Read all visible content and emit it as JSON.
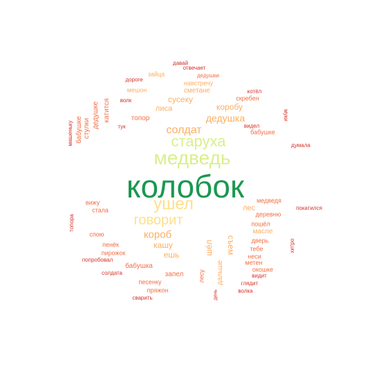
{
  "colors": {
    "green": "#1a9850",
    "lightgreen": "#d9ef8b",
    "yellow": "#fee08b",
    "orange": "#fdae61",
    "darkorange": "#f46d43",
    "red": "#d73027"
  },
  "words": [
    {
      "text": "колобок",
      "color": "green"
    },
    {
      "text": "медведь",
      "color": "lightgreen"
    },
    {
      "text": "старуха",
      "color": "lightgreen"
    },
    {
      "text": "ушел",
      "color": "yellow"
    },
    {
      "text": "говорит",
      "color": "yellow"
    },
    {
      "text": "солдат",
      "color": "orange"
    },
    {
      "text": "короб",
      "color": "orange"
    },
    {
      "text": "дедушка",
      "color": "orange"
    },
    {
      "text": "коробу",
      "color": "orange"
    },
    {
      "text": "сусеку",
      "color": "orange"
    },
    {
      "text": "лиса",
      "color": "orange"
    },
    {
      "text": "кашу",
      "color": "orange"
    },
    {
      "text": "ешь",
      "color": "orange"
    },
    {
      "text": "лес",
      "color": "orange"
    },
    {
      "text": "съем",
      "color": "orange"
    },
    {
      "text": "шёл",
      "color": "orange"
    },
    {
      "text": "сметане",
      "color": "orange"
    },
    {
      "text": "навстречу",
      "color": "orange"
    },
    {
      "text": "мешон",
      "color": "orange"
    },
    {
      "text": "зайца",
      "color": "orange"
    },
    {
      "text": "топор",
      "color": "darkorange"
    },
    {
      "text": "дедушке",
      "color": "darkorange"
    },
    {
      "text": "катится",
      "color": "darkorange"
    },
    {
      "text": "бабушке",
      "color": "darkorange"
    },
    {
      "text": "стулки",
      "color": "darkorange"
    },
    {
      "text": "машеньку",
      "color": "red"
    },
    {
      "text": "тук",
      "color": "red"
    },
    {
      "text": "волк",
      "color": "red"
    },
    {
      "text": "дороге",
      "color": "red"
    },
    {
      "text": "давай",
      "color": "red"
    },
    {
      "text": "отвечает",
      "color": "red"
    },
    {
      "text": "дедушки",
      "color": "darkorange"
    },
    {
      "text": "котёл",
      "color": "red"
    },
    {
      "text": "скребен",
      "color": "darkorange"
    },
    {
      "text": "муки",
      "color": "red"
    },
    {
      "text": "видел",
      "color": "red"
    },
    {
      "text": "бабушке",
      "color": "darkorange"
    },
    {
      "text": "думала",
      "color": "red"
    },
    {
      "text": "медведя",
      "color": "darkorange"
    },
    {
      "text": "деревню",
      "color": "darkorange"
    },
    {
      "text": "покатился",
      "color": "red"
    },
    {
      "text": "пошёл",
      "color": "darkorange"
    },
    {
      "text": "дверь",
      "color": "darkorange"
    },
    {
      "text": "масле",
      "color": "orange"
    },
    {
      "text": "тебе",
      "color": "darkorange"
    },
    {
      "text": "неси",
      "color": "darkorange"
    },
    {
      "text": "метен",
      "color": "darkorange"
    },
    {
      "text": "окошке",
      "color": "darkorange"
    },
    {
      "text": "видит",
      "color": "red"
    },
    {
      "text": "хитро",
      "color": "red"
    },
    {
      "text": "глядит",
      "color": "red"
    },
    {
      "text": "волка",
      "color": "red"
    },
    {
      "text": "дальше",
      "color": "orange"
    },
    {
      "text": "лесу",
      "color": "darkorange"
    },
    {
      "text": "день",
      "color": "red"
    },
    {
      "text": "вижу",
      "color": "darkorange"
    },
    {
      "text": "стала",
      "color": "darkorange"
    },
    {
      "text": "топора",
      "color": "red"
    },
    {
      "text": "спою",
      "color": "darkorange"
    },
    {
      "text": "пенёк",
      "color": "darkorange"
    },
    {
      "text": "пирожок",
      "color": "darkorange"
    },
    {
      "text": "попробовал",
      "color": "red"
    },
    {
      "text": "бабушка",
      "color": "darkorange"
    },
    {
      "text": "запел",
      "color": "darkorange"
    },
    {
      "text": "солдата",
      "color": "red"
    },
    {
      "text": "песенку",
      "color": "darkorange"
    },
    {
      "text": "пряжон",
      "color": "darkorange"
    },
    {
      "text": "сварить",
      "color": "red"
    }
  ]
}
